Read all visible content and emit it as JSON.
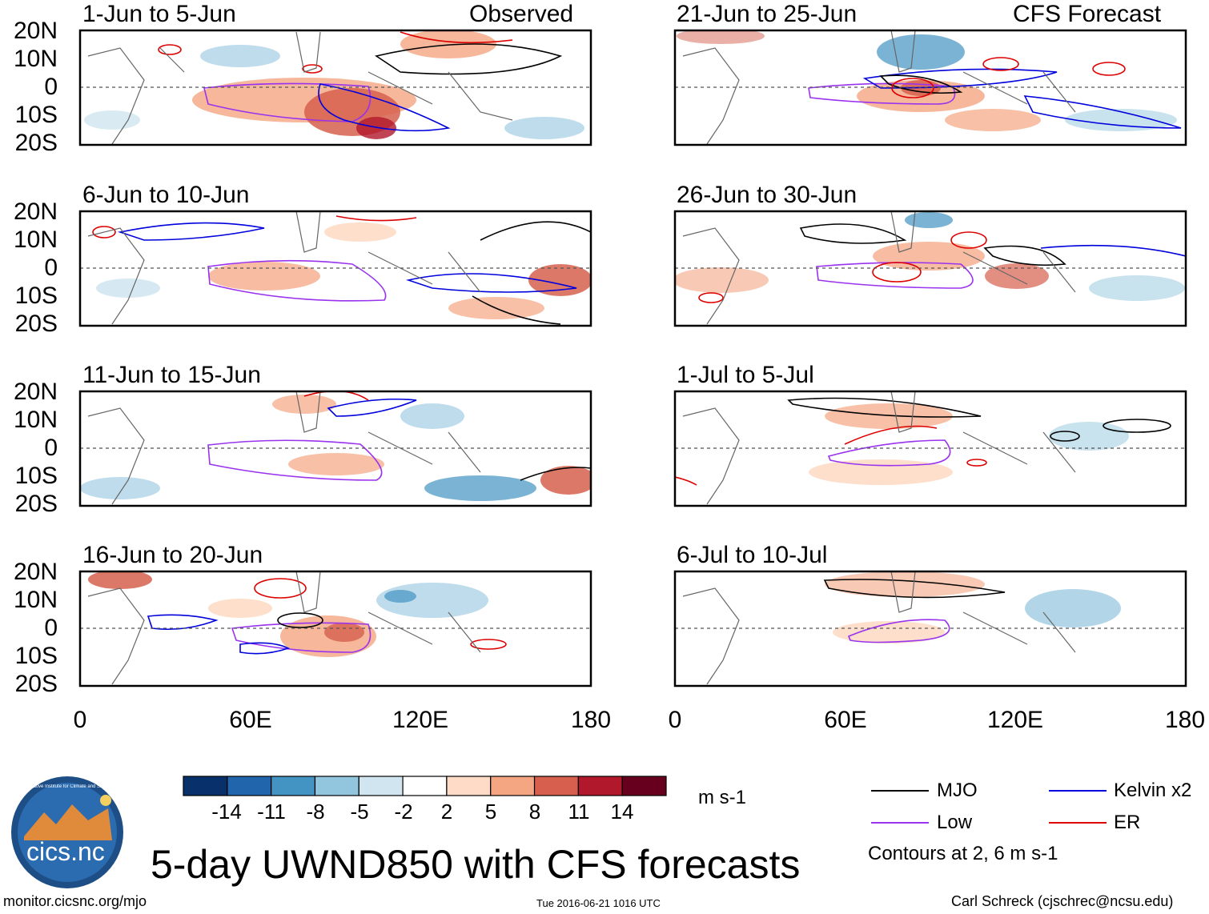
{
  "panels": [
    {
      "id": "p1",
      "title": "1-Jun to 5-Jun",
      "tag": "Observed"
    },
    {
      "id": "p2",
      "title": "6-Jun to 10-Jun",
      "tag": ""
    },
    {
      "id": "p3",
      "title": "11-Jun to 15-Jun",
      "tag": ""
    },
    {
      "id": "p4",
      "title": "16-Jun to 20-Jun",
      "tag": ""
    },
    {
      "id": "p5",
      "title": "21-Jun to 25-Jun",
      "tag": "CFS Forecast"
    },
    {
      "id": "p6",
      "title": "26-Jun to 30-Jun",
      "tag": ""
    },
    {
      "id": "p7",
      "title": "1-Jul to 5-Jul",
      "tag": ""
    },
    {
      "id": "p8",
      "title": "6-Jul to 10-Jul",
      "tag": ""
    }
  ],
  "lat_labels": [
    "20N",
    "10N",
    "0",
    "10S",
    "20S"
  ],
  "lon_labels": [
    "0",
    "60E",
    "120E",
    "180"
  ],
  "colorbar": {
    "colors": [
      "#08306b",
      "#2166ac",
      "#4393c3",
      "#92c5de",
      "#d1e5f0",
      "#ffffff",
      "#fddbc7",
      "#f4a582",
      "#d6604d",
      "#b2182b",
      "#67001f"
    ],
    "labels": [
      "-14",
      "-11",
      "-8",
      "-5",
      "-2",
      "2",
      "5",
      "8",
      "11",
      "14"
    ],
    "units": "m s-1"
  },
  "legend": {
    "items": [
      {
        "label": "MJO",
        "color": "#000000"
      },
      {
        "label": "Kelvin x2",
        "color": "#0000dd"
      },
      {
        "label": "Low",
        "color": "#9933ee"
      },
      {
        "label": "ER",
        "color": "#dd0000"
      }
    ],
    "note": "Contours at 2, 6 m s-1"
  },
  "logo": {
    "text": "cics.nc",
    "ring_text": "Cooperative Institute for Climate and Satellites"
  },
  "main_title": "5-day UWND850 with CFS forecasts",
  "footer": {
    "left": "monitor.cicsnc.org/mjo",
    "center": "Tue 2016-06-21 1016 UTC",
    "right": "Carl Schreck (cjschrec@ncsu.edu)"
  },
  "colors": {
    "equator": "#555555",
    "land": "#666666"
  }
}
